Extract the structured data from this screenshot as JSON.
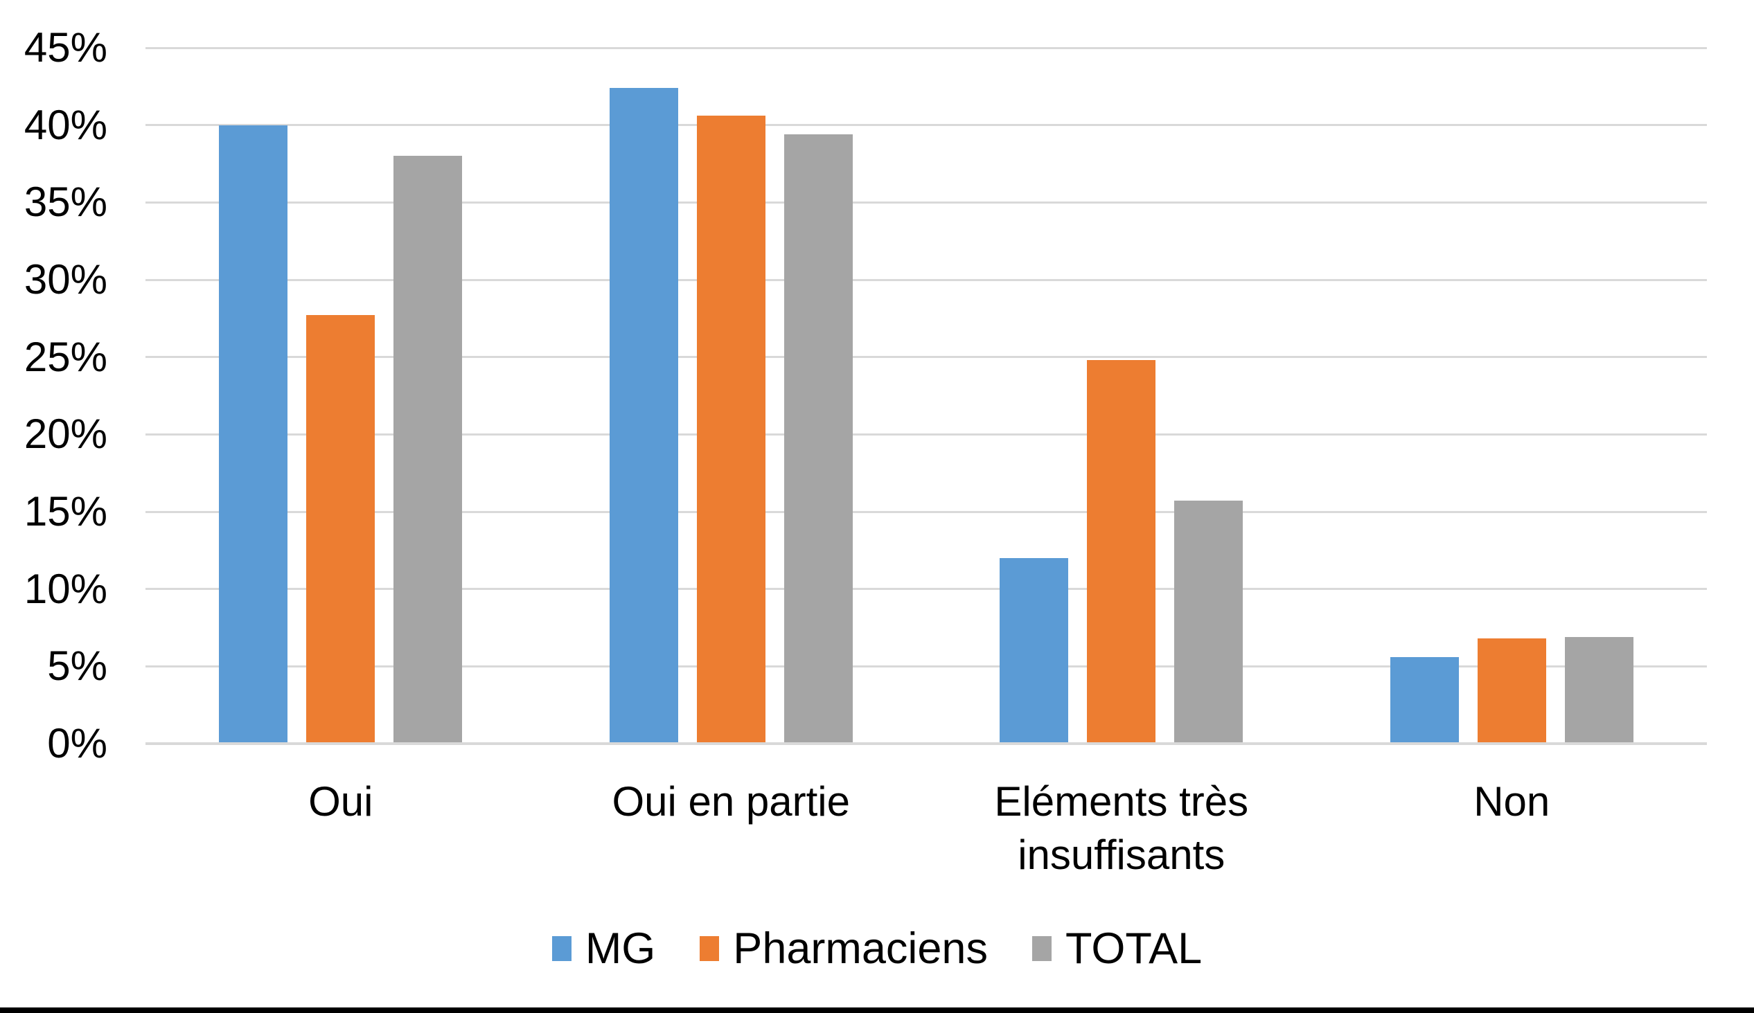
{
  "chart_data": {
    "type": "bar",
    "title": "",
    "xlabel": "",
    "ylabel": "",
    "categories": [
      "Oui",
      "Oui en partie",
      "Eléments très insuffisants",
      "Non"
    ],
    "series": [
      {
        "name": "MG",
        "color": "#5B9BD5",
        "values": [
          40.0,
          42.4,
          12.0,
          5.6
        ]
      },
      {
        "name": "Pharmaciens",
        "color": "#ED7D31",
        "values": [
          27.7,
          40.6,
          24.8,
          6.8
        ]
      },
      {
        "name": "TOTAL",
        "color": "#A5A5A5",
        "values": [
          38.0,
          39.4,
          15.7,
          6.9
        ]
      }
    ],
    "ylim": [
      0,
      45
    ],
    "ytick_step": 5,
    "yticks": [
      "0%",
      "5%",
      "10%",
      "15%",
      "20%",
      "25%",
      "30%",
      "35%",
      "40%",
      "45%"
    ],
    "grid": true,
    "gridline_color": "#D9D9D9",
    "legend_position": "bottom",
    "background_color": "#FFFFFF",
    "text_color": "#000000",
    "page_bottom_border_color": "#000000"
  }
}
